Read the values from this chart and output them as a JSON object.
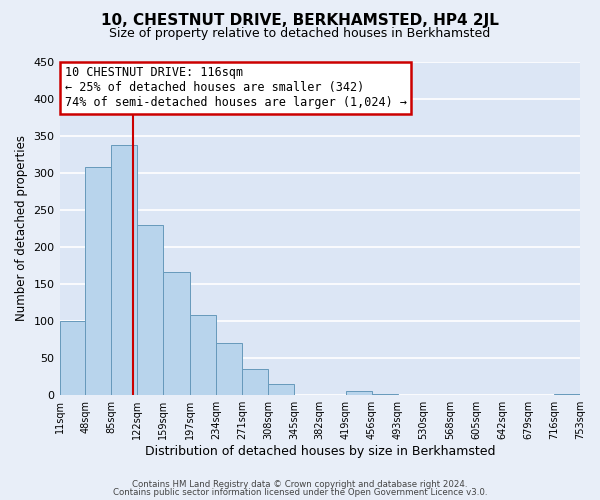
{
  "title": "10, CHESTNUT DRIVE, BERKHAMSTED, HP4 2JL",
  "subtitle": "Size of property relative to detached houses in Berkhamsted",
  "xlabel": "Distribution of detached houses by size in Berkhamsted",
  "ylabel": "Number of detached properties",
  "footnote1": "Contains HM Land Registry data © Crown copyright and database right 2024.",
  "footnote2": "Contains public sector information licensed under the Open Government Licence v3.0.",
  "bar_edges": [
    11,
    48,
    85,
    122,
    159,
    197,
    234,
    271,
    308,
    345,
    382,
    419,
    456,
    493,
    530,
    568,
    605,
    642,
    679,
    716,
    753
  ],
  "bar_heights": [
    100,
    307,
    337,
    229,
    166,
    108,
    70,
    35,
    14,
    0,
    0,
    5,
    1,
    0,
    0,
    0,
    0,
    0,
    0,
    1
  ],
  "bar_color": "#b8d4ec",
  "bar_edgecolor": "#6699bb",
  "vline_x": 116,
  "vline_color": "#cc0000",
  "ylim": [
    0,
    450
  ],
  "yticks": [
    0,
    50,
    100,
    150,
    200,
    250,
    300,
    350,
    400,
    450
  ],
  "annotation_title": "10 CHESTNUT DRIVE: 116sqm",
  "annotation_line1": "← 25% of detached houses are smaller (342)",
  "annotation_line2": "74% of semi-detached houses are larger (1,024) →",
  "bg_color": "#e8eef8",
  "plot_bg_color": "#dce6f5",
  "grid_color": "#ffffff",
  "title_fontsize": 11,
  "subtitle_fontsize": 9
}
